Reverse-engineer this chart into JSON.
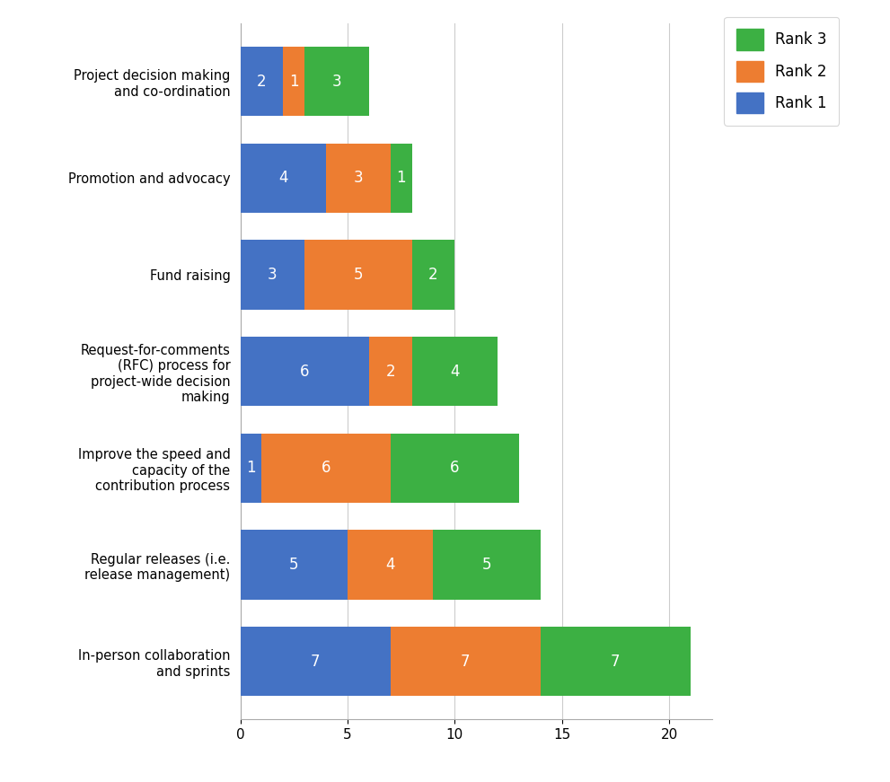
{
  "categories": [
    "In-person collaboration\nand sprints",
    "Regular releases (i.e.\nrelease management)",
    "Improve the speed and\ncapacity of the\ncontribution process",
    "Request-for-comments\n(RFC) process for\nproject-wide decision\nmaking",
    "Fund raising",
    "Promotion and advocacy",
    "Project decision making\nand co-ordination"
  ],
  "rank1": [
    7,
    5,
    1,
    6,
    3,
    4,
    2
  ],
  "rank2": [
    7,
    4,
    6,
    2,
    5,
    3,
    1
  ],
  "rank3": [
    7,
    5,
    6,
    4,
    2,
    1,
    3
  ],
  "color_rank1": "#4472c4",
  "color_rank2": "#ed7d31",
  "color_rank3": "#3cb043",
  "xlim": [
    0,
    22
  ],
  "xticks": [
    0,
    5,
    10,
    15,
    20
  ],
  "background_color": "#ffffff",
  "grid_color": "#cccccc",
  "bar_height": 0.72,
  "legend_labels": [
    "Rank 3",
    "Rank 2",
    "Rank 1"
  ]
}
